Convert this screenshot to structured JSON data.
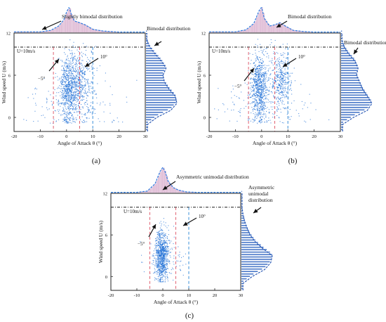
{
  "figure": {
    "colors": {
      "point": "#1f6fd6",
      "hist_top_fill": "#e9c7de",
      "hist_top_line": "#2f7de1",
      "hist_right_stripe": "#4a78c8",
      "hist_right_line": "#2d5bb5",
      "ref_line": "#1a1a1a",
      "neg5_line": "#e06070",
      "pos10_line": "#3a8fd8"
    }
  },
  "chart_data": [
    {
      "type": "scatter",
      "panel_label": "(a)",
      "xlabel": "Angle of Attack θ (°)",
      "ylabel": "Wind speed U (m/s)",
      "xlim": [
        -20,
        30
      ],
      "ylim": [
        -2,
        12
      ],
      "xticks": [
        -20,
        -10,
        0,
        10,
        20,
        30
      ],
      "yticks": [
        0,
        6,
        12
      ],
      "reference_lines": {
        "U": 10,
        "theta": [
          -5,
          5,
          10
        ]
      },
      "annotations": {
        "u_ref": "U=10m/s",
        "neg5": "−5°",
        "pos10": "10°",
        "top_dist": "Slightly bimodal distribution",
        "right_dist": "Bimodal distribution"
      },
      "clusters": [
        {
          "theta_mean": 0.8,
          "theta_sd": 1.8,
          "u_mean": 4.0,
          "u_sd": 2.6,
          "weight": 0.55
        },
        {
          "theta_mean": 5.0,
          "theta_sd": 2.6,
          "u_mean": 5.0,
          "u_sd": 2.4,
          "weight": 0.35
        },
        {
          "theta_mean": 2.0,
          "theta_sd": 9.0,
          "u_mean": 1.5,
          "u_sd": 1.8,
          "weight": 0.1
        }
      ],
      "angle_distribution": {
        "theta": [
          -10,
          -6,
          -3,
          -1,
          0,
          1,
          2,
          3,
          5,
          7,
          10,
          14,
          20
        ],
        "density": [
          0.02,
          0.08,
          0.25,
          0.5,
          0.8,
          1.0,
          0.65,
          0.45,
          0.38,
          0.3,
          0.12,
          0.05,
          0.01
        ]
      },
      "speed_distribution": {
        "u": [
          -1,
          0,
          1,
          2,
          3,
          4,
          5,
          6,
          7,
          8,
          9,
          10,
          11
        ],
        "density": [
          0.05,
          0.35,
          0.8,
          1.0,
          0.95,
          0.75,
          0.6,
          0.55,
          0.65,
          0.5,
          0.3,
          0.12,
          0.03
        ]
      }
    },
    {
      "type": "scatter",
      "panel_label": "(b)",
      "xlabel": "Angle of Attack θ (°)",
      "ylabel": "Wind speed U (m/s)",
      "xlim": [
        -20,
        30
      ],
      "ylim": [
        -2,
        12
      ],
      "xticks": [
        -20,
        -10,
        0,
        10,
        20,
        30
      ],
      "yticks": [
        0,
        6,
        12
      ],
      "reference_lines": {
        "U": 10,
        "theta": [
          -5,
          5,
          10
        ]
      },
      "annotations": {
        "u_ref": "U=10m/s",
        "neg5": "−5°",
        "pos10": "10°",
        "top_dist": "Bimodal distribution",
        "right_dist": "Bimodal distribution"
      },
      "clusters": [
        {
          "theta_mean": -1.0,
          "theta_sd": 1.6,
          "u_mean": 4.2,
          "u_sd": 2.4,
          "weight": 0.6
        },
        {
          "theta_mean": 7.0,
          "theta_sd": 2.0,
          "u_mean": 5.5,
          "u_sd": 2.2,
          "weight": 0.3
        },
        {
          "theta_mean": 2.0,
          "theta_sd": 9.0,
          "u_mean": 1.2,
          "u_sd": 1.6,
          "weight": 0.1
        }
      ],
      "angle_distribution": {
        "theta": [
          -10,
          -6,
          -3,
          -1,
          0,
          1,
          3,
          5,
          7,
          9,
          12,
          16,
          20
        ],
        "density": [
          0.02,
          0.1,
          0.35,
          0.85,
          1.0,
          0.55,
          0.25,
          0.3,
          0.38,
          0.25,
          0.08,
          0.03,
          0.01
        ]
      },
      "speed_distribution": {
        "u": [
          -1,
          0,
          1,
          2,
          3,
          4,
          5,
          6,
          7,
          8,
          9,
          10,
          11
        ],
        "density": [
          0.05,
          0.4,
          0.85,
          1.0,
          0.85,
          0.7,
          0.6,
          0.5,
          0.55,
          0.45,
          0.25,
          0.1,
          0.03
        ]
      }
    },
    {
      "type": "scatter",
      "panel_label": "(c)",
      "xlabel": "Angle of Attack θ (°)",
      "ylabel": "Wind speed U (m/s)",
      "xlim": [
        -20,
        30
      ],
      "ylim": [
        -2,
        12
      ],
      "xticks": [
        -20,
        -10,
        0,
        10,
        20,
        30
      ],
      "yticks": [
        0,
        6,
        12
      ],
      "reference_lines": {
        "U": 10,
        "theta": [
          -5,
          5,
          10
        ]
      },
      "annotations": {
        "u_ref": "U=10m/s",
        "neg5": "−5°",
        "pos10": "10°",
        "top_dist": "Asymmetric unimodal distribution",
        "right_dist": [
          "Asymmetric",
          "unimodal",
          "distribution"
        ]
      },
      "clusters": [
        {
          "theta_mean": -0.5,
          "theta_sd": 1.3,
          "u_mean": 3.0,
          "u_sd": 1.8,
          "weight": 0.85
        },
        {
          "theta_mean": 1.0,
          "theta_sd": 3.5,
          "u_mean": 2.5,
          "u_sd": 1.6,
          "weight": 0.15
        }
      ],
      "angle_distribution": {
        "theta": [
          -10,
          -6,
          -3,
          -1,
          0,
          1,
          2,
          4,
          6,
          9,
          13
        ],
        "density": [
          0.01,
          0.06,
          0.35,
          0.85,
          1.0,
          0.8,
          0.45,
          0.2,
          0.1,
          0.03,
          0.01
        ]
      },
      "speed_distribution": {
        "u": [
          -1,
          0,
          1,
          2,
          3,
          4,
          5,
          6,
          7,
          8,
          9,
          10
        ],
        "density": [
          0.05,
          0.35,
          0.75,
          0.95,
          1.0,
          0.7,
          0.45,
          0.28,
          0.18,
          0.1,
          0.05,
          0.02
        ]
      }
    }
  ]
}
